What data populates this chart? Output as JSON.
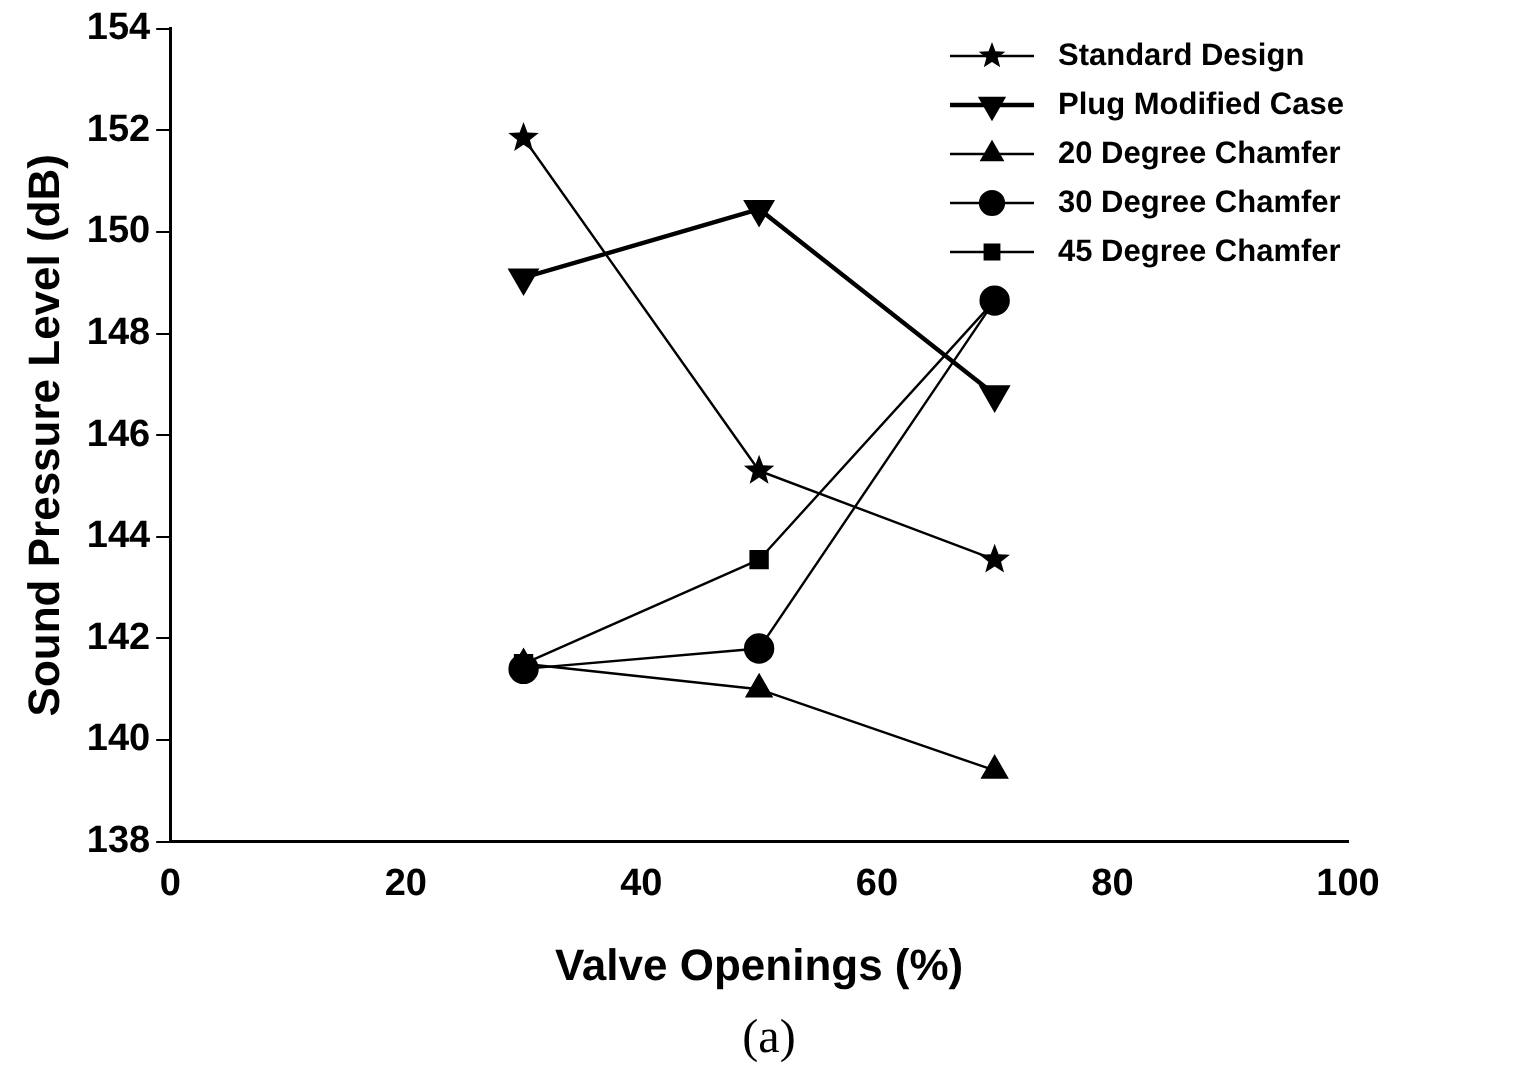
{
  "chart_data": {
    "type": "line",
    "xlabel": "Valve Openings (%)",
    "ylabel": "Sound Pressure Level (dB)",
    "x": [
      30,
      50,
      70
    ],
    "series": [
      {
        "name": "Standard Design",
        "color": "#000000",
        "marker": "star",
        "values": [
          151.85,
          145.3,
          143.55
        ]
      },
      {
        "name": "Plug Modified Case",
        "color": "#000000",
        "marker": "triangle-down",
        "values": [
          149.1,
          150.45,
          146.8
        ]
      },
      {
        "name": "20 Degree Chamfer",
        "color": "#000000",
        "marker": "triangle",
        "values": [
          141.5,
          141.0,
          139.4
        ]
      },
      {
        "name": "30 Degree Chamfer",
        "color": "#000000",
        "marker": "circle",
        "values": [
          141.4,
          141.8,
          148.65
        ]
      },
      {
        "name": "45 Degree Chamfer",
        "color": "#000000",
        "marker": "square",
        "values": [
          141.5,
          143.55,
          148.65
        ]
      }
    ],
    "xlim": [
      0,
      100
    ],
    "xticks": [
      0,
      20,
      40,
      60,
      80,
      100
    ],
    "ylim": [
      138,
      154
    ],
    "yticks": [
      138,
      140,
      142,
      144,
      146,
      148,
      150,
      152,
      154
    ],
    "grid": false,
    "legend": "top right",
    "line_style": "solid",
    "annotations": [
      "(a)"
    ]
  }
}
